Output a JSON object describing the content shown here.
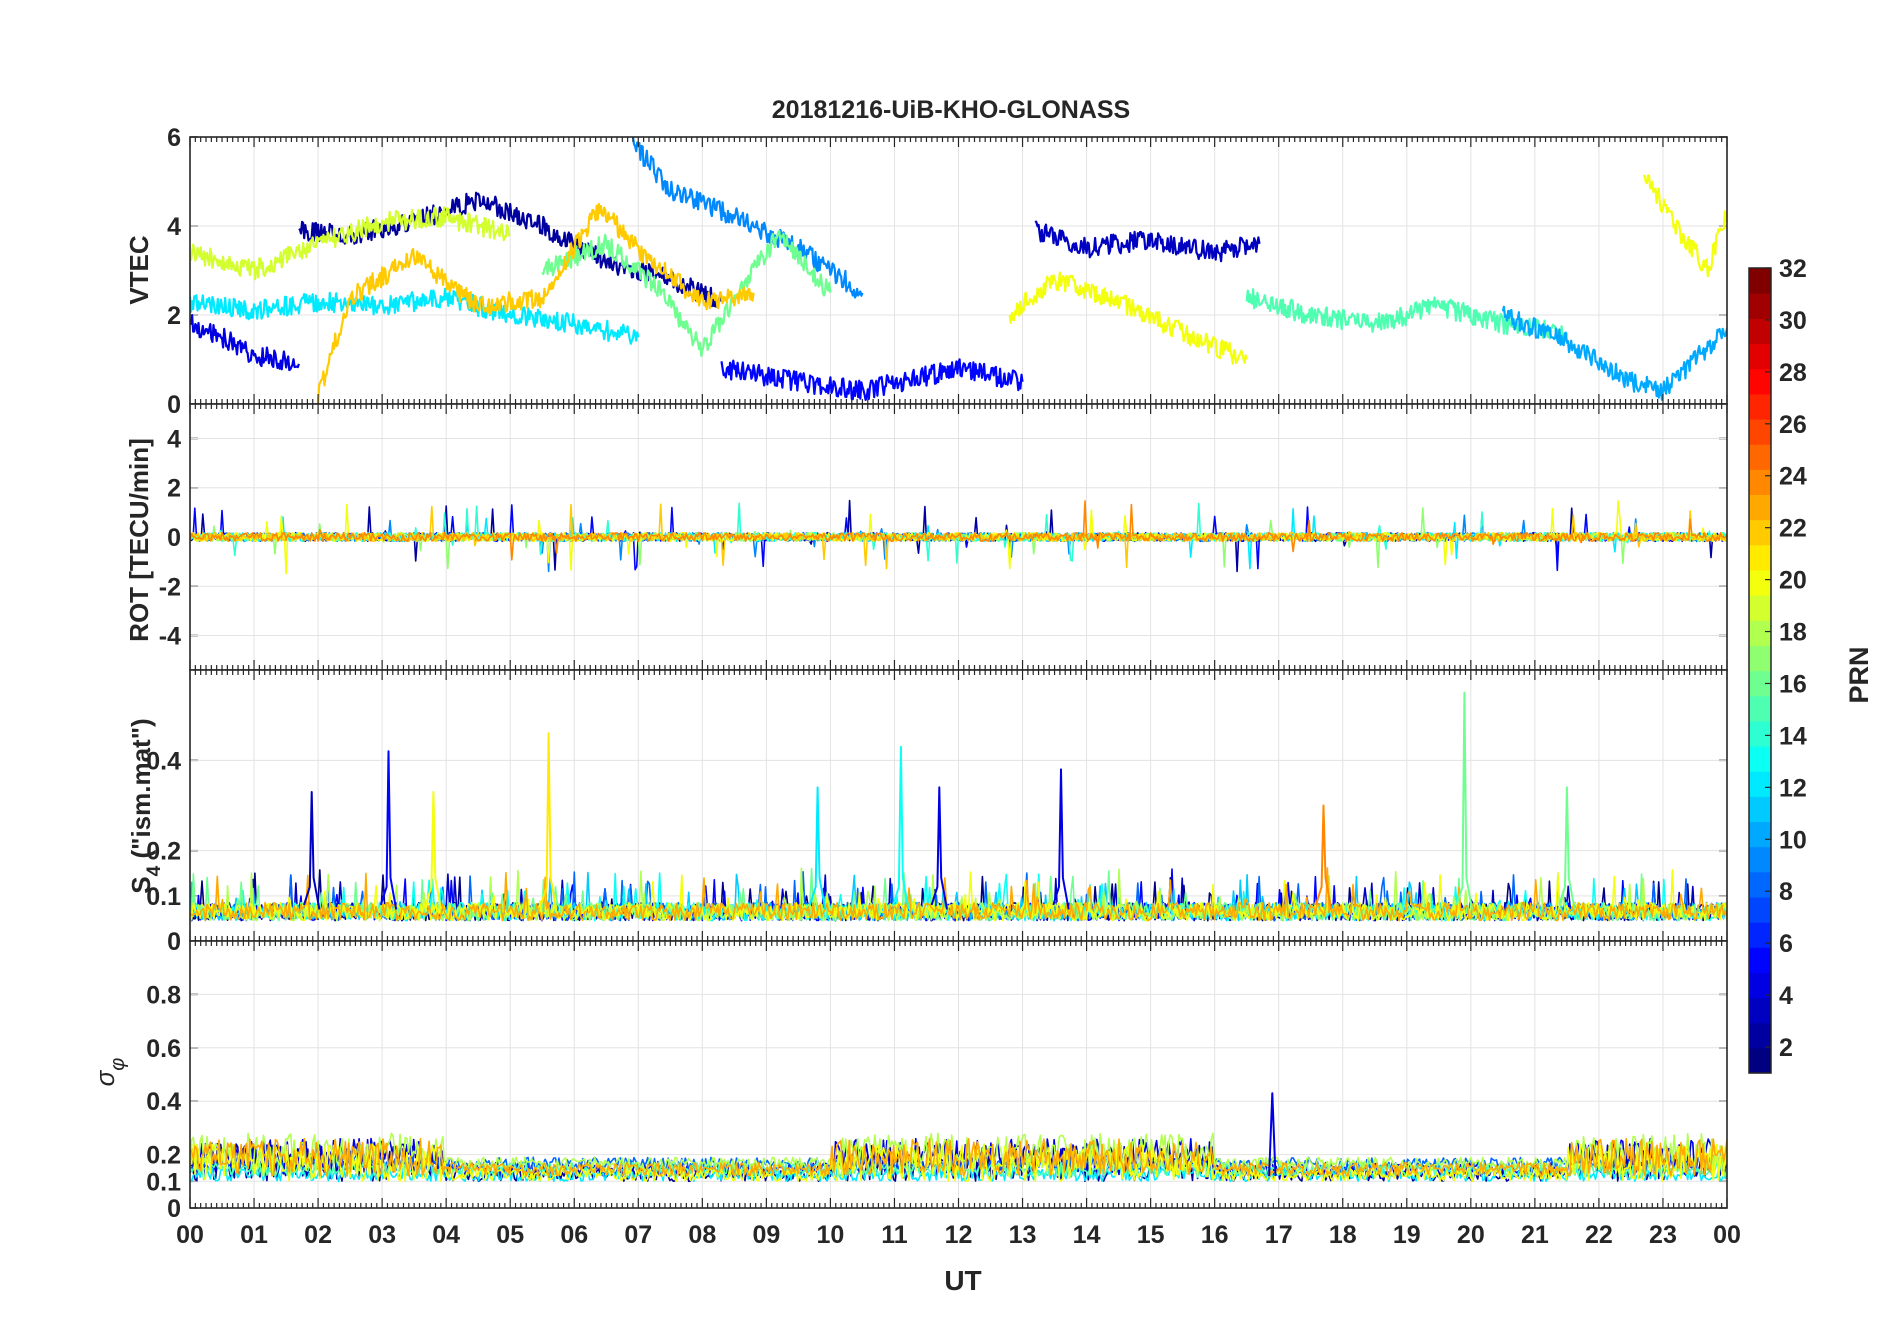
{
  "title": "20181216-UiB-KHO-GLONASS",
  "chart_data": [
    {
      "type": "line",
      "panel": "vtec",
      "ylabel": "VTEC",
      "ylim": [
        0,
        6
      ],
      "yticks": [
        0,
        2,
        4,
        6
      ],
      "grid": true,
      "series_sketch": [
        {
          "prn": 2,
          "points": [
            [
              1.7,
              3.9
            ],
            [
              2.5,
              3.8
            ],
            [
              3.5,
              4.1
            ],
            [
              4.5,
              4.6
            ],
            [
              5.5,
              4.0
            ],
            [
              6.5,
              3.2
            ],
            [
              7.5,
              2.8
            ],
            [
              8.3,
              2.3
            ]
          ]
        },
        {
          "prn": 4,
          "points": [
            [
              0.0,
              1.8
            ],
            [
              0.5,
              1.5
            ],
            [
              1.0,
              1.1
            ],
            [
              1.7,
              0.9
            ]
          ]
        },
        {
          "prn": 3,
          "points": [
            [
              13.2,
              3.9
            ],
            [
              14.0,
              3.5
            ],
            [
              15.0,
              3.7
            ],
            [
              16.0,
              3.4
            ],
            [
              16.7,
              3.6
            ]
          ]
        },
        {
          "prn": 5,
          "points": [
            [
              8.3,
              0.8
            ],
            [
              9.5,
              0.5
            ],
            [
              10.5,
              0.3
            ],
            [
              12.0,
              0.8
            ],
            [
              13.0,
              0.5
            ]
          ]
        },
        {
          "prn": 9,
          "points": [
            [
              6.9,
              5.9
            ],
            [
              7.5,
              4.8
            ],
            [
              8.5,
              4.2
            ],
            [
              9.5,
              3.5
            ],
            [
              10.5,
              2.5
            ]
          ]
        },
        {
          "prn": 12,
          "points": [
            [
              0.0,
              2.3
            ],
            [
              1.0,
              2.1
            ],
            [
              2.0,
              2.3
            ],
            [
              3.0,
              2.2
            ],
            [
              4.0,
              2.4
            ],
            [
              5.0,
              2.0
            ],
            [
              6.0,
              1.8
            ],
            [
              7.0,
              1.5
            ]
          ]
        },
        {
          "prn": 16,
          "points": [
            [
              5.5,
              3.0
            ],
            [
              6.5,
              3.6
            ],
            [
              7.3,
              2.6
            ],
            [
              8.0,
              1.2
            ],
            [
              8.7,
              2.8
            ],
            [
              9.2,
              3.8
            ],
            [
              10.0,
              2.5
            ]
          ]
        },
        {
          "prn": 19,
          "points": [
            [
              0.0,
              3.4
            ],
            [
              1.0,
              3.0
            ],
            [
              2.0,
              3.6
            ],
            [
              3.0,
              4.1
            ],
            [
              4.0,
              4.2
            ],
            [
              5.0,
              3.8
            ]
          ]
        },
        {
          "prn": 20,
          "points": [
            [
              12.8,
              2.0
            ],
            [
              13.5,
              2.8
            ],
            [
              14.5,
              2.3
            ],
            [
              15.5,
              1.6
            ],
            [
              16.5,
              1.0
            ]
          ]
        },
        {
          "prn": 22,
          "points": [
            [
              2.0,
              0.2
            ],
            [
              2.5,
              2.4
            ],
            [
              3.5,
              3.3
            ],
            [
              4.5,
              2.2
            ],
            [
              5.5,
              2.4
            ],
            [
              6.4,
              4.4
            ],
            [
              7.2,
              3.2
            ],
            [
              8.0,
              2.3
            ],
            [
              8.8,
              2.5
            ]
          ]
        },
        {
          "prn": 15,
          "points": [
            [
              16.5,
              2.4
            ],
            [
              17.5,
              2.0
            ],
            [
              18.5,
              1.8
            ],
            [
              19.5,
              2.2
            ],
            [
              20.5,
              1.8
            ],
            [
              21.5,
              1.6
            ]
          ]
        },
        {
          "prn": 10,
          "points": [
            [
              20.5,
              2.0
            ],
            [
              21.5,
              1.4
            ],
            [
              22.5,
              0.5
            ],
            [
              23.0,
              0.3
            ],
            [
              23.5,
              1.0
            ],
            [
              24.0,
              1.7
            ]
          ]
        },
        {
          "prn": 20,
          "points": [
            [
              22.7,
              5.2
            ],
            [
              23.2,
              4.0
            ],
            [
              23.7,
              3.0
            ],
            [
              24.0,
              4.3
            ]
          ]
        }
      ]
    },
    {
      "type": "line",
      "panel": "rot",
      "ylabel": "ROT [TECU/min]",
      "ylim": [
        -5.4,
        5.4
      ],
      "yticks": [
        -4,
        -2,
        0,
        2,
        4
      ],
      "grid": true
    },
    {
      "type": "line",
      "panel": "s4",
      "ylabel_main": "S",
      "ylabel_sub": "4",
      "ylabel_rest": " (\"ism.mat\")",
      "ylim": [
        0,
        0.6
      ],
      "yticks": [
        0,
        0.1,
        0.2,
        0.4
      ],
      "grid": true,
      "spikes": [
        {
          "x": 1.9,
          "y": 0.33,
          "prn": 3
        },
        {
          "x": 3.1,
          "y": 0.42,
          "prn": 5
        },
        {
          "x": 3.8,
          "y": 0.33,
          "prn": 20
        },
        {
          "x": 5.6,
          "y": 0.46,
          "prn": 21
        },
        {
          "x": 9.8,
          "y": 0.34,
          "prn": 12
        },
        {
          "x": 11.1,
          "y": 0.43,
          "prn": 13
        },
        {
          "x": 11.7,
          "y": 0.34,
          "prn": 4
        },
        {
          "x": 13.6,
          "y": 0.38,
          "prn": 4
        },
        {
          "x": 17.7,
          "y": 0.3,
          "prn": 24
        },
        {
          "x": 19.9,
          "y": 0.55,
          "prn": 16
        },
        {
          "x": 21.5,
          "y": 0.34,
          "prn": 16
        }
      ]
    },
    {
      "type": "line",
      "panel": "sigma_phi",
      "ylabel": "σ",
      "ylabel_sub": "φ",
      "ylim": [
        0,
        1.0
      ],
      "yticks": [
        0,
        0.1,
        0.2,
        0.4,
        0.6,
        0.8
      ],
      "grid": true
    }
  ],
  "x_axis": {
    "label": "UT",
    "xlim": [
      0,
      24
    ],
    "ticks": [
      "00",
      "01",
      "02",
      "03",
      "04",
      "05",
      "06",
      "07",
      "08",
      "09",
      "10",
      "11",
      "12",
      "13",
      "14",
      "15",
      "16",
      "17",
      "18",
      "19",
      "20",
      "21",
      "22",
      "23",
      "00"
    ]
  },
  "colorbar": {
    "label": "PRN",
    "colormap": "jet",
    "range": [
      1,
      32
    ],
    "ticks": [
      "2",
      "4",
      "6",
      "8",
      "10",
      "12",
      "14",
      "16",
      "18",
      "20",
      "22",
      "24",
      "26",
      "28",
      "30",
      "32"
    ]
  }
}
